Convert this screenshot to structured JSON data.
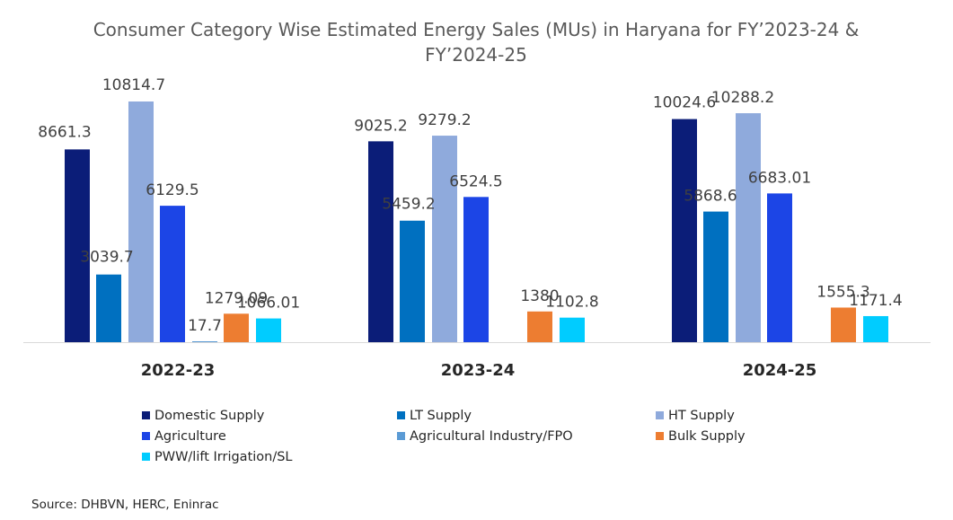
{
  "chart_data": {
    "type": "bar",
    "title_lines": [
      "Consumer Category Wise Estimated Energy Sales (MUs) in Haryana for FY’2023-24 &",
      "FY’2024-25"
    ],
    "categories": [
      "2022-23",
      "2023-24",
      "2024-25"
    ],
    "ylim": [
      0,
      11500
    ],
    "grid": false,
    "legend_position": "bottom",
    "series": [
      {
        "name": "Domestic Supply",
        "color": "#0B1D78",
        "values": [
          8661.3,
          9025.2,
          10024.6
        ],
        "labels": [
          "8661.3",
          "9025.2",
          "10024.6"
        ]
      },
      {
        "name": "LT Supply",
        "color": "#0070C0",
        "values": [
          3039.7,
          5459.2,
          5868.6
        ],
        "labels": [
          "3039.7",
          "5459.2",
          "5868.6"
        ]
      },
      {
        "name": "HT Supply",
        "color": "#8FAADC",
        "values": [
          10814.7,
          9279.2,
          10288.2
        ],
        "labels": [
          "10814.7",
          "9279.2",
          "10288.2"
        ]
      },
      {
        "name": "Agriculture",
        "color": "#1C45E6",
        "values": [
          6129.5,
          6524.5,
          6683.01
        ],
        "labels": [
          "6129.5",
          "6524.5",
          "6683.01"
        ]
      },
      {
        "name": "Agricultural Industry/FPO",
        "color": "#5B9BD5",
        "values": [
          17.7,
          null,
          null
        ],
        "labels": [
          "17.7",
          null,
          null
        ]
      },
      {
        "name": "Bulk Supply",
        "color": "#ED7D31",
        "values": [
          1279.09,
          1380,
          1555.3
        ],
        "labels": [
          "1279.09",
          "1380",
          "1555.3"
        ]
      },
      {
        "name": "PWW/lift Irrigation/SL",
        "color": "#00CCFF",
        "values": [
          1066.01,
          1102.8,
          1171.4
        ],
        "labels": [
          "1066.01",
          "1102.8",
          "1171.4"
        ]
      }
    ],
    "source": "Source: DHBVN, HERC, Eninrac"
  }
}
